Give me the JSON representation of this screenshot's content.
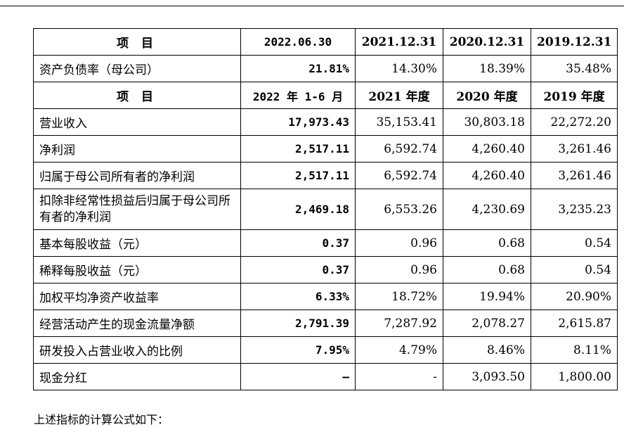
{
  "header_fragments": {
    "left": "",
    "right": ""
  },
  "table": {
    "header1": {
      "label": "项  目",
      "cols": [
        "2022.06.30",
        "2021.12.31",
        "2020.12.31",
        "2019.12.31"
      ]
    },
    "row_debt": {
      "label": "资产负债率（母公司）",
      "values": [
        "21.81%",
        "14.30%",
        "18.39%",
        "35.48%"
      ]
    },
    "header2": {
      "label": "项  目",
      "cols": [
        "2022 年 1-6 月",
        "2021 年度",
        "2020 年度",
        "2019 年度"
      ]
    },
    "rows": [
      {
        "label": "营业收入",
        "values": [
          "17,973.43",
          "35,153.41",
          "30,803.18",
          "22,272.20"
        ]
      },
      {
        "label": "净利润",
        "values": [
          "2,517.11",
          "6,592.74",
          "4,260.40",
          "3,261.46"
        ]
      },
      {
        "label": "归属于母公司所有者的净利润",
        "values": [
          "2,517.11",
          "6,592.74",
          "4,260.40",
          "3,261.46"
        ]
      },
      {
        "label": "扣除非经常性损益后归属于母公司所有者的净利润",
        "values": [
          "2,469.18",
          "6,553.26",
          "4,230.69",
          "3,235.23"
        ]
      },
      {
        "label": "基本每股收益（元）",
        "values": [
          "0.37",
          "0.96",
          "0.68",
          "0.54"
        ]
      },
      {
        "label": "稀释每股收益（元）",
        "values": [
          "0.37",
          "0.96",
          "0.68",
          "0.54"
        ]
      },
      {
        "label": "加权平均净资产收益率",
        "values": [
          "6.33%",
          "18.72%",
          "19.94%",
          "20.90%"
        ]
      },
      {
        "label": "经营活动产生的现金流量净额",
        "values": [
          "2,791.39",
          "7,287.92",
          "2,078.27",
          "2,615.87"
        ]
      },
      {
        "label": "研发投入占营业收入的比例",
        "values": [
          "7.95%",
          "4.79%",
          "8.46%",
          "8.11%"
        ]
      },
      {
        "label": "现金分红",
        "values": [
          "–",
          "-",
          "3,093.50",
          "1,800.00"
        ]
      }
    ]
  },
  "footnote": "上述指标的计算公式如下："
}
